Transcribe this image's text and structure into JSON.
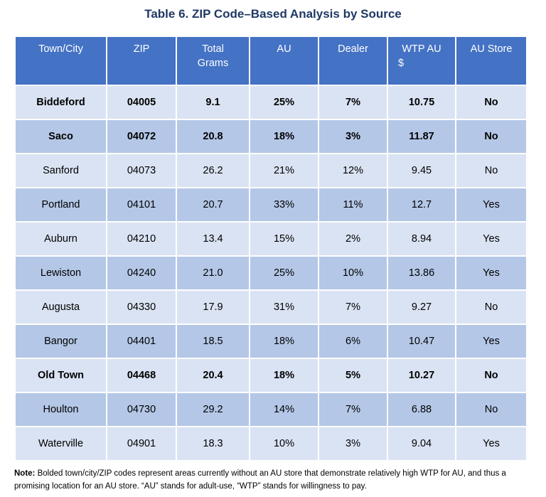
{
  "title": "Table 6. ZIP Code–Based Analysis by Source",
  "table": {
    "headers": [
      {
        "line1": "Town/City",
        "line2": ""
      },
      {
        "line1": "ZIP",
        "line2": ""
      },
      {
        "line1": "Total",
        "line2": "Grams"
      },
      {
        "line1": "AU",
        "line2": ""
      },
      {
        "line1": "Dealer",
        "line2": ""
      },
      {
        "line1": "WTP AU",
        "line2": "$"
      },
      {
        "line1": "AU Store",
        "line2": ""
      }
    ],
    "rows": [
      {
        "bold": true,
        "cells": [
          "Biddeford",
          "04005",
          "9.1",
          "25%",
          "7%",
          "10.75",
          "No"
        ]
      },
      {
        "bold": true,
        "cells": [
          "Saco",
          "04072",
          "20.8",
          "18%",
          "3%",
          "11.87",
          "No"
        ]
      },
      {
        "bold": false,
        "cells": [
          "Sanford",
          "04073",
          "26.2",
          "21%",
          "12%",
          "9.45",
          "No"
        ]
      },
      {
        "bold": false,
        "cells": [
          "Portland",
          "04101",
          "20.7",
          "33%",
          "11%",
          "12.7",
          "Yes"
        ]
      },
      {
        "bold": false,
        "cells": [
          "Auburn",
          "04210",
          "13.4",
          "15%",
          "2%",
          "8.94",
          "Yes"
        ]
      },
      {
        "bold": false,
        "cells": [
          "Lewiston",
          "04240",
          "21.0",
          "25%",
          "10%",
          "13.86",
          "Yes"
        ]
      },
      {
        "bold": false,
        "cells": [
          "Augusta",
          "04330",
          "17.9",
          "31%",
          "7%",
          "9.27",
          "No"
        ]
      },
      {
        "bold": false,
        "cells": [
          "Bangor",
          "04401",
          "18.5",
          "18%",
          "6%",
          "10.47",
          "Yes"
        ]
      },
      {
        "bold": true,
        "cells": [
          "Old Town",
          "04468",
          "20.4",
          "18%",
          "5%",
          "10.27",
          "No"
        ]
      },
      {
        "bold": false,
        "cells": [
          "Houlton",
          "04730",
          "29.2",
          "14%",
          "7%",
          "6.88",
          "No"
        ]
      },
      {
        "bold": false,
        "cells": [
          "Waterville",
          "04901",
          "18.3",
          "10%",
          "3%",
          "9.04",
          "Yes"
        ]
      }
    ]
  },
  "note": {
    "label": "Note:",
    "text": " Bolded town/city/ZIP codes represent areas currently without an AU store that demonstrate relatively high WTP for AU, and thus a promising location for an AU store. “AU” stands for adult-use, “WTP” stands for willingness to pay."
  }
}
